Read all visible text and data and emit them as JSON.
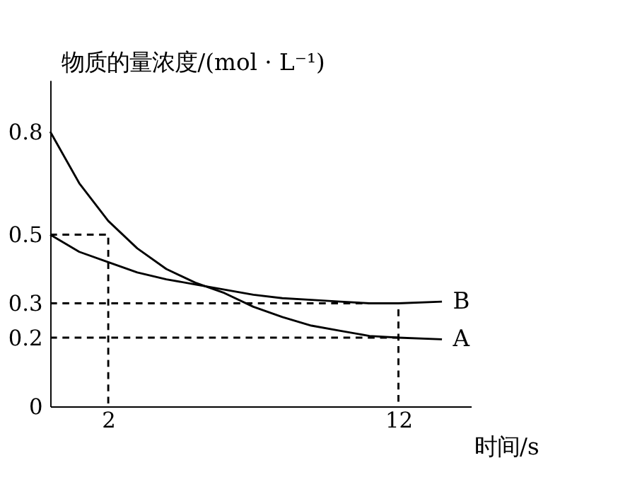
{
  "chart_data": {
    "type": "line",
    "xlabel": "时间/s",
    "ylabel": "物质的量浓度/(mol · L⁻¹)",
    "xlim": [
      0,
      14.5
    ],
    "xticks": [
      2,
      12
    ],
    "ylim": [
      0,
      0.95
    ],
    "yticks": [
      0,
      0.2,
      0.3,
      0.5,
      0.8
    ],
    "marker": "none",
    "series": [
      {
        "name": "A",
        "color": "#000000",
        "line_style": "solid",
        "x": [
          0,
          1,
          2,
          3,
          4,
          5,
          6,
          7,
          8,
          9,
          10,
          11,
          12,
          13.5
        ],
        "values": [
          0.8,
          0.65,
          0.54,
          0.46,
          0.4,
          0.36,
          0.33,
          0.29,
          0.26,
          0.235,
          0.22,
          0.205,
          0.2,
          0.195
        ]
      },
      {
        "name": "B",
        "color": "#000000",
        "line_style": "solid",
        "x": [
          0,
          1,
          2,
          3,
          4,
          5,
          6,
          7,
          8,
          9,
          10,
          11,
          12,
          13.5
        ],
        "values": [
          0.5,
          0.45,
          0.42,
          0.39,
          0.37,
          0.355,
          0.34,
          0.325,
          0.315,
          0.31,
          0.305,
          0.3,
          0.3,
          0.305
        ]
      },
      {
        "color": "#000000",
        "line_style": "dashed",
        "x": [
          0,
          2,
          2
        ],
        "values": [
          0.5,
          0.5,
          0
        ]
      },
      {
        "color": "#000000",
        "line_style": "dashed",
        "x": [
          0,
          12,
          12
        ],
        "values": [
          0.3,
          0.3,
          0
        ]
      },
      {
        "color": "#000000",
        "line_style": "dashed",
        "x": [
          0,
          12
        ],
        "values": [
          0.2,
          0.2
        ]
      }
    ]
  }
}
